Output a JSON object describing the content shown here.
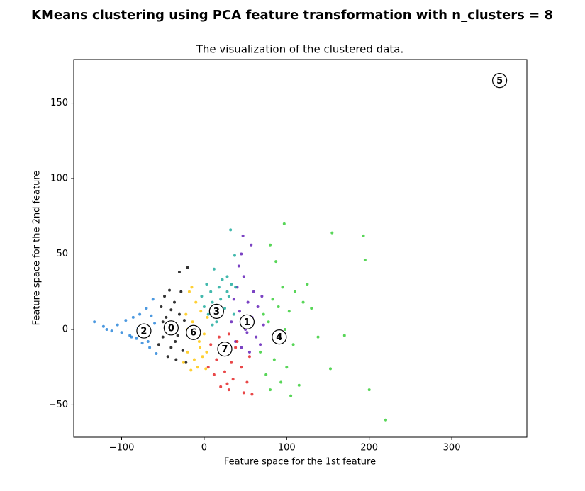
{
  "chart_data": {
    "type": "scatter",
    "title": "KMeans clustering using PCA feature transformation with n_clusters = 8",
    "subtitle": "The visualization of the clustered data.",
    "x_label": "Feature space for the 1st feature",
    "y_label": "Feature space for the 2nd feature",
    "xlim": [
      -158,
      391
    ],
    "ylim": [
      -71.4,
      178.9
    ],
    "xticks": [
      {
        "value": -100,
        "label": "−100"
      },
      0,
      100,
      200,
      300
    ],
    "yticks": [
      {
        "value": -50,
        "label": "−50"
      },
      0,
      50,
      100,
      150
    ],
    "series": [
      {
        "color": "#000000",
        "x": [
          -55,
          -52,
          -50,
          -48,
          -46,
          -44,
          -42,
          -40,
          -38,
          -36,
          -34,
          -32,
          -30,
          -28,
          -26,
          -24,
          -22,
          -45,
          -35,
          -30,
          -20,
          -50,
          -40
        ],
        "y": [
          -10,
          15,
          -5,
          22,
          8,
          -18,
          26,
          -12,
          3,
          18,
          -20,
          -4,
          10,
          25,
          -14,
          6,
          -22,
          0,
          -8,
          38,
          41,
          5,
          13
        ]
      },
      {
        "color": "#5a14b4",
        "x": [
          33,
          36,
          38,
          40,
          43,
          45,
          48,
          50,
          53,
          55,
          58,
          60,
          63,
          65,
          68,
          70,
          72,
          47,
          57,
          45,
          42,
          52
        ],
        "y": [
          5,
          20,
          -8,
          28,
          12,
          -12,
          35,
          0,
          18,
          -15,
          8,
          25,
          -5,
          15,
          -10,
          22,
          3,
          62,
          56,
          50,
          42,
          -2
        ]
      },
      {
        "color": "#1f7fd8",
        "x": [
          -133,
          -122,
          -118,
          -112,
          -105,
          -100,
          -95,
          -90,
          -86,
          -82,
          -78,
          -75,
          -70,
          -66,
          -62,
          -60,
          -58,
          -80,
          -72,
          -64,
          -68,
          -88
        ],
        "y": [
          5,
          2,
          0,
          -1,
          3,
          -2,
          6,
          -4,
          8,
          -6,
          10,
          -9,
          14,
          -12,
          20,
          4,
          -16,
          1,
          -3,
          9,
          -8,
          -5
        ]
      },
      {
        "color": "#14a898",
        "x": [
          -3,
          0,
          3,
          5,
          8,
          10,
          12,
          15,
          18,
          20,
          22,
          25,
          28,
          30,
          33,
          36,
          38,
          32,
          37,
          28,
          10,
          15
        ],
        "y": [
          22,
          15,
          30,
          10,
          25,
          18,
          40,
          8,
          28,
          20,
          33,
          14,
          25,
          22,
          30,
          10,
          28,
          66,
          49,
          35,
          3,
          5
        ]
      },
      {
        "color": "#2ecc2e",
        "x": [
          68,
          72,
          75,
          78,
          80,
          83,
          85,
          88,
          90,
          93,
          95,
          98,
          100,
          103,
          105,
          108,
          110,
          115,
          120,
          125,
          130,
          138,
          155,
          170,
          193,
          195,
          153,
          200,
          220,
          80,
          97,
          87
        ],
        "y": [
          -15,
          10,
          -30,
          5,
          -40,
          20,
          -20,
          -5,
          15,
          -35,
          28,
          0,
          -25,
          12,
          -44,
          -10,
          25,
          -37,
          18,
          30,
          14,
          -5,
          64,
          -4,
          62,
          46,
          -26,
          -40,
          -60,
          56,
          70,
          45
        ]
      },
      {
        "color": "#1a1a1a",
        "x": [
          358
        ],
        "y": [
          165
        ]
      },
      {
        "color": "#ffc400",
        "x": [
          -25,
          -22,
          -20,
          -18,
          -16,
          -14,
          -12,
          -10,
          -8,
          -6,
          -4,
          -2,
          0,
          2,
          4,
          -15,
          -5,
          -20,
          -10,
          3
        ],
        "y": [
          -22,
          10,
          -15,
          25,
          -27,
          5,
          -20,
          18,
          -25,
          -8,
          12,
          -18,
          -3,
          -26,
          8,
          28,
          -12,
          0,
          -5,
          -15
        ]
      },
      {
        "color": "#e41a1c",
        "x": [
          5,
          8,
          12,
          15,
          18,
          20,
          22,
          25,
          28,
          30,
          33,
          35,
          38,
          40,
          45,
          48,
          52,
          58,
          55,
          30
        ],
        "y": [
          -25,
          -10,
          -30,
          -20,
          -5,
          -38,
          -15,
          -28,
          -36,
          -3,
          -22,
          -33,
          -12,
          -8,
          -25,
          -42,
          -35,
          -43,
          -18,
          -40
        ]
      }
    ],
    "centers": {
      "labels": [
        "0",
        "1",
        "2",
        "3",
        "4",
        "5",
        "6",
        "7"
      ],
      "x": [
        -40,
        52,
        -73,
        15,
        91,
        358,
        -13,
        25
      ],
      "y": [
        1,
        5,
        -1,
        12,
        -5,
        165,
        -2,
        -13
      ]
    }
  }
}
